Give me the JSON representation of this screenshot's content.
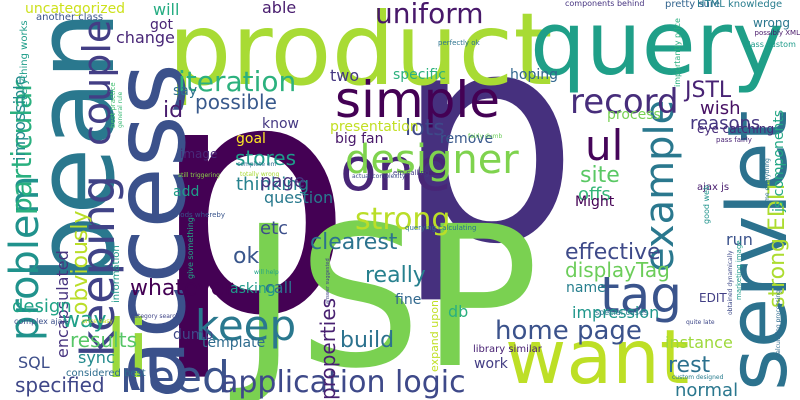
{
  "words": [
    {
      "text": "p",
      "color": "#440154"
    },
    {
      "text": "p",
      "color": "#46307e"
    },
    {
      "text": "JSP",
      "color": "#7ad151"
    },
    {
      "text": "product",
      "color": "#a8db34"
    },
    {
      "text": "query",
      "color": "#1f9f88"
    },
    {
      "text": "access",
      "color": "#3b518b"
    },
    {
      "text": "bean",
      "color": "#2a788e"
    },
    {
      "text": "servlet",
      "color": "#2c728e"
    },
    {
      "text": "want",
      "color": "#bddf26"
    },
    {
      "text": "li",
      "color": "#9bd93c"
    },
    {
      "text": "one",
      "color": "#482677"
    },
    {
      "text": "simple",
      "color": "#440154"
    },
    {
      "text": "designer",
      "color": "#7fd34e"
    },
    {
      "text": "need",
      "color": "#3b528b"
    },
    {
      "text": "keeping",
      "color": "#404387"
    },
    {
      "text": "example",
      "color": "#2a788e"
    },
    {
      "text": "tag",
      "color": "#3a548c"
    },
    {
      "text": "problem",
      "color": "#20928c"
    },
    {
      "text": "keep",
      "color": "#2a788e"
    },
    {
      "text": "couple",
      "color": "#433e85"
    },
    {
      "text": "record",
      "color": "#472d7b"
    },
    {
      "text": "application logic",
      "color": "#3e4989"
    },
    {
      "text": "home page",
      "color": "#3b528b"
    },
    {
      "text": "strong",
      "color": "#bade28"
    },
    {
      "text": "ul",
      "color": "#450559"
    },
    {
      "text": "particular",
      "color": "#2ab07f"
    },
    {
      "text": "iteration",
      "color": "#2cb17e"
    },
    {
      "text": "uniform",
      "color": "#48186a"
    },
    {
      "text": "JSTL",
      "color": "#482374"
    },
    {
      "text": "strong EDIT",
      "color": "#addc30"
    },
    {
      "text": "site",
      "color": "#5ac864"
    },
    {
      "text": "displayTag",
      "color": "#6ccd5a"
    },
    {
      "text": "effective",
      "color": "#3e4a89"
    },
    {
      "text": "build",
      "color": "#2c728e"
    },
    {
      "text": "properties",
      "color": "#482071"
    },
    {
      "text": "really",
      "color": "#27808e"
    },
    {
      "text": "clearest",
      "color": "#2c738e"
    },
    {
      "text": "whatever",
      "color": "#440154"
    },
    {
      "text": "results",
      "color": "#56c667"
    },
    {
      "text": "reasons",
      "color": "#453781"
    },
    {
      "text": "wish",
      "color": "#471164"
    },
    {
      "text": "js components",
      "color": "#22a785"
    },
    {
      "text": "possible",
      "color": "#38598c"
    },
    {
      "text": "stores",
      "color": "#1f9a8a"
    },
    {
      "text": "lots",
      "color": "#3e4989"
    },
    {
      "text": "obviously",
      "color": "#bade28"
    },
    {
      "text": "encapsulated",
      "color": "#46337f"
    },
    {
      "text": "specified",
      "color": "#3f4788"
    },
    {
      "text": "design",
      "color": "#20a386"
    },
    {
      "text": "way",
      "color": "#1fa088"
    },
    {
      "text": "SQL",
      "color": "#3d4e8a"
    },
    {
      "text": "sync",
      "color": "#238a8d"
    },
    {
      "text": "instance",
      "color": "#9dd93b"
    },
    {
      "text": "rest",
      "color": "#2c718e"
    },
    {
      "text": "normal",
      "color": "#2a778e"
    },
    {
      "text": "offs",
      "color": "#35b779"
    },
    {
      "text": "run",
      "color": "#3b528b"
    },
    {
      "text": "id",
      "color": "#481b6d"
    },
    {
      "text": "thinking",
      "color": "#26828e"
    },
    {
      "text": "page",
      "color": "#46327e"
    },
    {
      "text": "etc",
      "color": "#3c4f8a"
    },
    {
      "text": "question",
      "color": "#297a8e"
    },
    {
      "text": "ok",
      "color": "#39568c"
    },
    {
      "text": "db",
      "color": "#2ab07f"
    },
    {
      "text": "impression",
      "color": "#1f968b"
    },
    {
      "text": "change",
      "color": "#482677"
    },
    {
      "text": "able",
      "color": "#481c6e"
    },
    {
      "text": "will",
      "color": "#25ac82"
    },
    {
      "text": "got",
      "color": "#482475"
    },
    {
      "text": "two",
      "color": "#453882"
    },
    {
      "text": "specific",
      "color": "#2cb17e"
    },
    {
      "text": "hoping",
      "color": "#31668e"
    },
    {
      "text": "process",
      "color": "#77d153"
    },
    {
      "text": "say",
      "color": "#2c718e"
    },
    {
      "text": "image",
      "color": "#482878"
    },
    {
      "text": "know",
      "color": "#453882"
    },
    {
      "text": "goal",
      "color": "#fde725"
    },
    {
      "text": "presentation",
      "color": "#c2df23"
    },
    {
      "text": "big fan",
      "color": "#481769"
    },
    {
      "text": "remove",
      "color": "#38588c"
    },
    {
      "text": "add",
      "color": "#1f9e89"
    },
    {
      "text": "Might",
      "color": "#440154"
    },
    {
      "text": "call",
      "color": "#2e6e8e"
    },
    {
      "text": "fine",
      "color": "#31688e"
    },
    {
      "text": "asking",
      "color": "#1f998a"
    },
    {
      "text": "dumb",
      "color": "#3f4889"
    },
    {
      "text": "template",
      "color": "#2f6c8e"
    },
    {
      "text": "work",
      "color": "#433d84"
    },
    {
      "text": "name",
      "color": "#277f8e"
    },
    {
      "text": "EDIT",
      "color": "#423f85"
    },
    {
      "text": "impossible",
      "color": "#228c8d"
    },
    {
      "text": "uncategorized",
      "color": "#cde11d"
    },
    {
      "text": "another class",
      "color": "#3a548c"
    },
    {
      "text": "everything works",
      "color": "#1e9d89"
    },
    {
      "text": "components behind",
      "color": "#463480"
    },
    {
      "text": "pretty sure",
      "color": "#32648e"
    },
    {
      "text": "HTML knowledge",
      "color": "#287d8e"
    },
    {
      "text": "wrong",
      "color": "#2a778e"
    },
    {
      "text": "perfectly ok",
      "color": "#2c738e"
    },
    {
      "text": "importantly price",
      "color": "#29af7f"
    },
    {
      "text": "possibly XML",
      "color": "#48186a"
    },
    {
      "text": "class custom",
      "color": "#1e9b8a"
    },
    {
      "text": "eye catching",
      "color": "#472c7a"
    },
    {
      "text": "best practice",
      "color": "#43bf71"
    },
    {
      "text": "general rule",
      "color": "#3aba76"
    },
    {
      "text": "pass fairly",
      "color": "#482173"
    },
    {
      "text": "fairly dumb",
      "color": "#6ccd5a"
    },
    {
      "text": "em calling",
      "color": "#433e85"
    },
    {
      "text": "complete em",
      "color": "#2d708e"
    },
    {
      "text": "still triggering",
      "color": "#8bd646"
    },
    {
      "text": "totally wrong",
      "color": "#a8db34"
    },
    {
      "text": "actual complexity",
      "color": "#3d4d8a"
    },
    {
      "text": "ajax js",
      "color": "#481c6e"
    },
    {
      "text": "good web",
      "color": "#20938c"
    },
    {
      "text": "information",
      "color": "#1f998a"
    },
    {
      "text": "methods whereby",
      "color": "#39558c"
    },
    {
      "text": "give something",
      "color": "#22a785"
    },
    {
      "text": "querying calculating",
      "color": "#2d718e"
    },
    {
      "text": "time everything",
      "color": "#2c728e"
    },
    {
      "text": "marketing image",
      "color": "#1e9b8a"
    },
    {
      "text": "obtained dynamically",
      "color": "#3e4a89"
    },
    {
      "text": "will help",
      "color": "#1fa188"
    },
    {
      "text": "answer suggested",
      "color": "#414487"
    },
    {
      "text": "category search",
      "color": "#404688"
    },
    {
      "text": "complex ajax",
      "color": "#3c508b"
    },
    {
      "text": "price easy",
      "color": "#c8e020"
    },
    {
      "text": "considered best",
      "color": "#2e6d8e"
    },
    {
      "text": "expand upon",
      "color": "#c0df25"
    },
    {
      "text": "library similar",
      "color": "#482173"
    },
    {
      "text": "special cases",
      "color": "#2b748e"
    },
    {
      "text": "quite late",
      "color": "#3f4889"
    },
    {
      "text": "custom designed",
      "color": "#287c8e"
    },
    {
      "text": "calculating processing",
      "color": "#2f6b8e"
    }
  ]
}
